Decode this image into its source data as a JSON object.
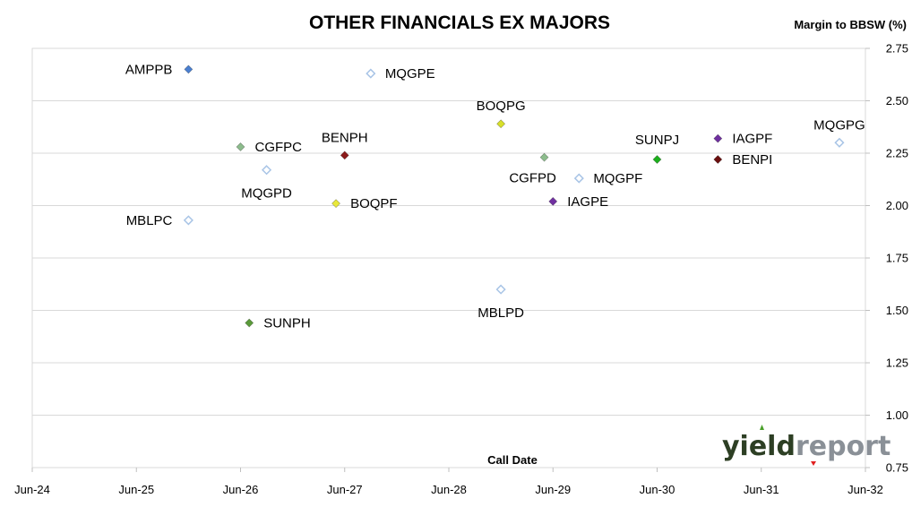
{
  "chart_data": {
    "type": "scatter",
    "title": "OTHER FINANCIALS EX MAJORS",
    "ylabel": "Margin to BBSW (%)",
    "xlabel": "Call Date",
    "ylim": [
      0.75,
      2.75
    ],
    "yticks": [
      "0.75",
      "1.00",
      "1.25",
      "1.50",
      "1.75",
      "2.00",
      "2.25",
      "2.50",
      "2.75"
    ],
    "xticks": [
      "Jun-24",
      "Jun-25",
      "Jun-26",
      "Jun-27",
      "Jun-28",
      "Jun-29",
      "Jun-30",
      "Jun-31",
      "Jun-32"
    ],
    "xlim": [
      "2024-06",
      "2032-06"
    ],
    "grid": "horizontal",
    "points": [
      {
        "name": "AMPPB",
        "x": "2025-12",
        "y": 2.65,
        "color": "#4a7fd0",
        "hollow": false,
        "label_pos": "left"
      },
      {
        "name": "MQGPE",
        "x": "2027-09",
        "y": 2.63,
        "color": "#a8c4e6",
        "hollow": true,
        "label_pos": "right"
      },
      {
        "name": "BOQPG",
        "x": "2028-12",
        "y": 2.39,
        "color": "#d8e02a",
        "hollow": false,
        "label_pos": "above"
      },
      {
        "name": "CGFPC",
        "x": "2026-06",
        "y": 2.28,
        "color": "#8cbc8c",
        "hollow": false,
        "label_pos": "right"
      },
      {
        "name": "BENPH",
        "x": "2027-06",
        "y": 2.24,
        "color": "#8b1a1a",
        "hollow": false,
        "label_pos": "above"
      },
      {
        "name": "MQGPD",
        "x": "2026-09",
        "y": 2.17,
        "color": "#a8c4e6",
        "hollow": true,
        "label_pos": "below"
      },
      {
        "name": "BOQPF",
        "x": "2027-05",
        "y": 2.01,
        "color": "#e8e83a",
        "hollow": false,
        "label_pos": "right"
      },
      {
        "name": "MBLPC",
        "x": "2025-12",
        "y": 1.93,
        "color": "#a8c4e6",
        "hollow": true,
        "label_pos": "left"
      },
      {
        "name": "SUNPH",
        "x": "2026-07",
        "y": 1.44,
        "color": "#5a9a3a",
        "hollow": false,
        "label_pos": "right"
      },
      {
        "name": "MBLPD",
        "x": "2028-12",
        "y": 1.6,
        "color": "#a8c4e6",
        "hollow": true,
        "label_pos": "below"
      },
      {
        "name": "CGFPD",
        "x": "2029-05",
        "y": 2.23,
        "color": "#8cbc8c",
        "hollow": false,
        "label_pos": "below-left"
      },
      {
        "name": "MQGPF",
        "x": "2029-09",
        "y": 2.13,
        "color": "#a8c4e6",
        "hollow": true,
        "label_pos": "right"
      },
      {
        "name": "IAGPE",
        "x": "2029-06",
        "y": 2.02,
        "color": "#7030a0",
        "hollow": false,
        "label_pos": "right"
      },
      {
        "name": "SUNPJ",
        "x": "2030-06",
        "y": 2.22,
        "color": "#1cb01c",
        "hollow": false,
        "label_pos": "above-left"
      },
      {
        "name": "IAGPF",
        "x": "2031-01",
        "y": 2.32,
        "color": "#7030a0",
        "hollow": false,
        "label_pos": "right"
      },
      {
        "name": "BENPI",
        "x": "2031-01",
        "y": 2.22,
        "color": "#6b0e0e",
        "hollow": false,
        "label_pos": "right"
      },
      {
        "name": "MQGPG",
        "x": "2032-03",
        "y": 2.3,
        "color": "#a8c4e6",
        "hollow": true,
        "label_pos": "above"
      }
    ]
  },
  "logo": {
    "part1": "yield",
    "part2": "report"
  }
}
